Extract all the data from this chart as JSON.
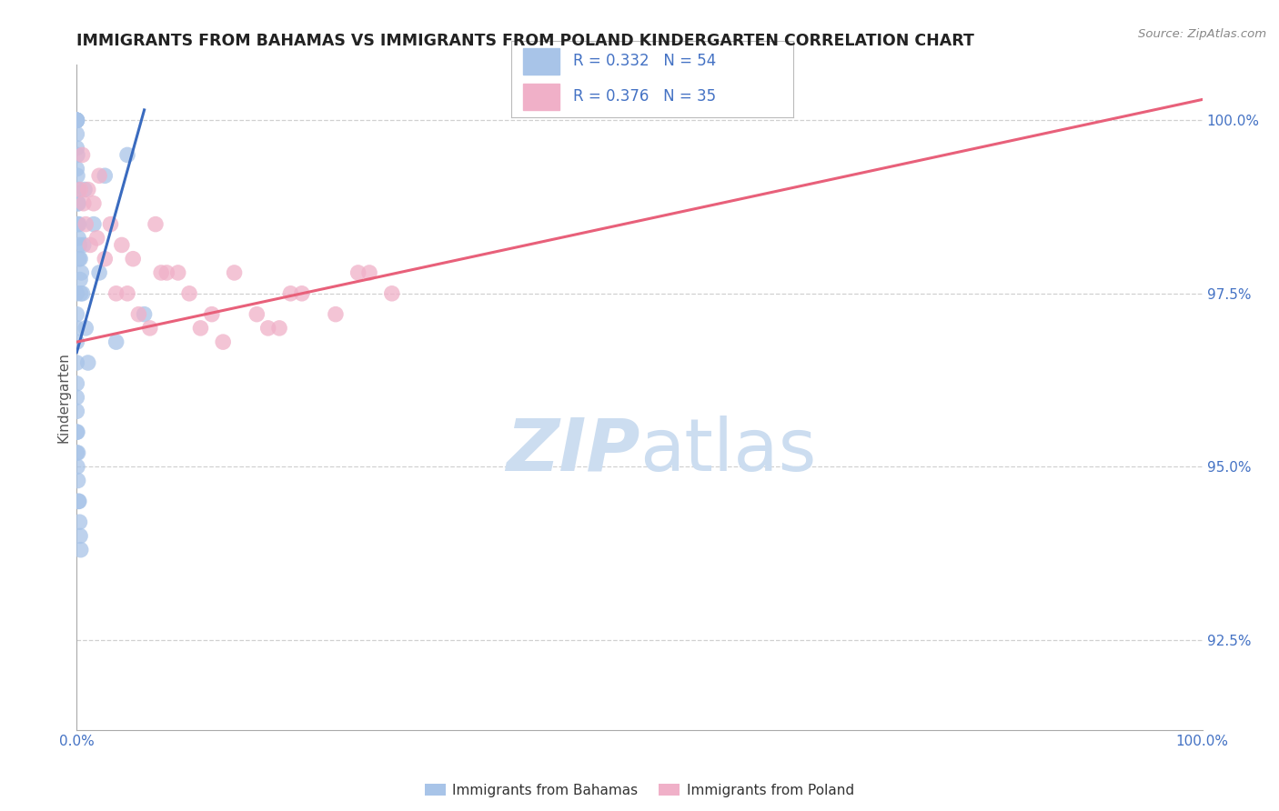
{
  "title": "IMMIGRANTS FROM BAHAMAS VS IMMIGRANTS FROM POLAND KINDERGARTEN CORRELATION CHART",
  "source": "Source: ZipAtlas.com",
  "ylabel": "Kindergarten",
  "x_min": 0.0,
  "x_max": 100.0,
  "y_min": 91.2,
  "y_max": 100.8,
  "y_ticks": [
    92.5,
    95.0,
    97.5,
    100.0
  ],
  "y_tick_labels": [
    "92.5%",
    "95.0%",
    "97.5%",
    "100.0%"
  ],
  "x_ticks": [
    0.0,
    100.0
  ],
  "x_tick_labels": [
    "0.0%",
    "100.0%"
  ],
  "bahamas_color": "#a8c4e8",
  "bahamas_line_color": "#3a6bbf",
  "poland_color": "#f0b0c8",
  "poland_line_color": "#e8607a",
  "background_color": "#ffffff",
  "grid_color": "#cccccc",
  "title_color": "#222222",
  "title_fontsize": 12.5,
  "axis_label_color": "#4472c4",
  "watermark_color": "#ccddf0",
  "bahamas_R": 0.332,
  "bahamas_N": 54,
  "poland_R": 0.376,
  "poland_N": 35,
  "bahamas_x": [
    0.0,
    0.0,
    0.0,
    0.0,
    0.0,
    0.0,
    0.0,
    0.0,
    0.0,
    0.0,
    0.05,
    0.05,
    0.1,
    0.1,
    0.1,
    0.15,
    0.15,
    0.2,
    0.2,
    0.25,
    0.3,
    0.3,
    0.35,
    0.4,
    0.0,
    0.0,
    0.0,
    0.0,
    0.0,
    0.0,
    0.0,
    0.0,
    0.0,
    0.0,
    0.05,
    0.05,
    0.1,
    0.1,
    0.15,
    0.2,
    0.25,
    0.3,
    0.35,
    0.5,
    0.6,
    0.7,
    0.8,
    1.0,
    1.5,
    2.0,
    2.5,
    3.5,
    4.5,
    6.0
  ],
  "bahamas_y": [
    100.0,
    100.0,
    100.0,
    100.0,
    100.0,
    100.0,
    100.0,
    99.8,
    99.6,
    99.3,
    99.5,
    99.2,
    99.0,
    98.8,
    98.5,
    98.8,
    98.3,
    98.5,
    98.0,
    98.2,
    98.0,
    97.7,
    97.5,
    97.8,
    97.5,
    97.2,
    97.0,
    96.8,
    96.5,
    96.2,
    96.0,
    95.8,
    95.5,
    95.2,
    95.5,
    95.0,
    95.2,
    94.8,
    94.5,
    94.5,
    94.2,
    94.0,
    93.8,
    97.5,
    98.2,
    99.0,
    97.0,
    96.5,
    98.5,
    97.8,
    99.2,
    96.8,
    99.5,
    97.2
  ],
  "poland_x": [
    0.5,
    1.0,
    1.5,
    2.0,
    3.0,
    4.0,
    5.0,
    7.0,
    8.0,
    10.0,
    12.0,
    14.0,
    17.0,
    20.0,
    25.0,
    0.3,
    0.8,
    1.2,
    2.5,
    3.5,
    5.5,
    6.5,
    9.0,
    11.0,
    13.0,
    16.0,
    19.0,
    23.0,
    28.0,
    0.6,
    1.8,
    4.5,
    7.5,
    18.0,
    26.0
  ],
  "poland_y": [
    99.5,
    99.0,
    98.8,
    99.2,
    98.5,
    98.2,
    98.0,
    98.5,
    97.8,
    97.5,
    97.2,
    97.8,
    97.0,
    97.5,
    97.8,
    99.0,
    98.5,
    98.2,
    98.0,
    97.5,
    97.2,
    97.0,
    97.8,
    97.0,
    96.8,
    97.2,
    97.5,
    97.2,
    97.5,
    98.8,
    98.3,
    97.5,
    97.8,
    97.0,
    97.8
  ],
  "bahamas_line_x": [
    0.0,
    6.0
  ],
  "bahamas_line_y": [
    96.65,
    100.15
  ],
  "poland_line_x": [
    0.0,
    100.0
  ],
  "poland_line_y": [
    96.8,
    100.3
  ]
}
